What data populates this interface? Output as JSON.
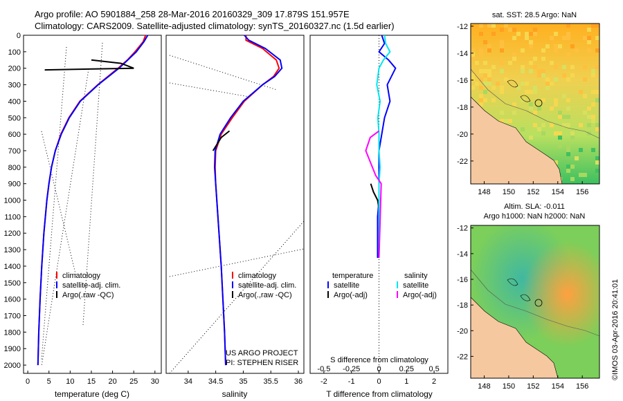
{
  "header": {
    "line1": "Argo profile: AO 5901884_258 28-Mar-2016 20160329_309 17.879S 151.957E",
    "line2": "Climatology: CARS2009. Satellite-adjusted climatology: synTS_20160327.nc (1.5d earlier)"
  },
  "colors": {
    "climatology": "#ff0000",
    "satellite": "#0000ff",
    "argo": "#000000",
    "sal_satellite": "#00e5ee",
    "sal_argo": "#ff00ff",
    "land": "#f5c8a0"
  },
  "depth_axis": {
    "min": 0,
    "max": 2050,
    "ticks": [
      "0",
      "100",
      "200",
      "300",
      "400",
      "500",
      "600",
      "700",
      "800",
      "900",
      "1000",
      "1100",
      "1200",
      "1300",
      "1400",
      "1500",
      "1600",
      "1700",
      "1800",
      "1900",
      "2000"
    ]
  },
  "chart_data": [
    {
      "type": "line",
      "name": "temperature",
      "xlabel": "temperature (deg C)",
      "xlim": [
        -1,
        31.5
      ],
      "xticks": [
        "0",
        "5",
        "10",
        "15",
        "20",
        "25",
        "30"
      ],
      "ylim": [
        0,
        2050
      ],
      "legend": [
        "climatology",
        "satellite-adj. clim.",
        "Argo(.raw -QC)"
      ],
      "series": [
        {
          "name": "climatology",
          "depth": [
            0,
            40,
            100,
            150,
            200,
            300,
            400,
            500,
            600,
            700,
            800,
            900,
            1000,
            1200,
            1400,
            1600,
            1800,
            2000
          ],
          "values": [
            27.8,
            27.2,
            25.3,
            23.5,
            21.3,
            16.5,
            12.3,
            9.7,
            7.8,
            6.5,
            5.6,
            5.0,
            4.5,
            3.8,
            3.3,
            2.9,
            2.6,
            2.4
          ]
        },
        {
          "name": "satellite-adj. clim.",
          "depth": [
            0,
            40,
            100,
            150,
            200,
            300,
            400,
            500,
            600,
            700,
            800,
            900,
            1000,
            1200,
            1400,
            1600,
            1800,
            2000
          ],
          "values": [
            28.3,
            27.4,
            25.6,
            23.6,
            21.5,
            16.6,
            12.4,
            9.8,
            7.9,
            6.5,
            5.6,
            5.0,
            4.5,
            3.8,
            3.3,
            2.9,
            2.6,
            2.4
          ]
        },
        {
          "name": "Argo",
          "depth": [
            150,
            170,
            200,
            210
          ],
          "values": [
            15,
            22,
            25,
            4
          ]
        }
      ]
    },
    {
      "type": "line",
      "name": "salinity",
      "xlabel": "salinity",
      "xlim": [
        33.6,
        36.1
      ],
      "xticks": [
        "34",
        "34.5",
        "35",
        "35.5",
        "36"
      ],
      "ylim": [
        0,
        2050
      ],
      "legend": [
        "climatology",
        "satellite-adj. clim.",
        "Argo(.,raw -QC)"
      ],
      "annotation": [
        "US ARGO PROJECT",
        "PI: STEPHEN RISER"
      ],
      "series": [
        {
          "name": "climatology",
          "depth": [
            0,
            30,
            80,
            150,
            200,
            250,
            300,
            400,
            500,
            600,
            700,
            800,
            900,
            1000,
            1200,
            1400,
            1600,
            1800,
            2000
          ],
          "values": [
            35.05,
            35.05,
            35.35,
            35.6,
            35.65,
            35.55,
            35.35,
            35.02,
            34.8,
            34.6,
            34.5,
            34.49,
            34.5,
            34.52,
            34.56,
            34.6,
            34.63,
            34.66,
            34.68
          ]
        },
        {
          "name": "satellite-adj. clim.",
          "depth": [
            0,
            30,
            80,
            150,
            200,
            250,
            300,
            400,
            500,
            600,
            700,
            800,
            900,
            1000,
            1200,
            1400,
            1600,
            1800,
            2000
          ],
          "values": [
            35.02,
            35.1,
            35.4,
            35.67,
            35.7,
            35.57,
            35.35,
            35.0,
            34.77,
            34.58,
            34.49,
            34.48,
            34.5,
            34.52,
            34.56,
            34.6,
            34.63,
            34.66,
            34.68
          ]
        },
        {
          "name": "Argo",
          "depth": [
            580,
            620,
            700
          ],
          "values": [
            34.75,
            34.6,
            34.45
          ]
        }
      ]
    },
    {
      "type": "line",
      "name": "difference",
      "xlabel": "T difference from climatology",
      "xlabel_top": "S difference from climatology",
      "xlim": [
        -2.5,
        2.5
      ],
      "xticks": [
        "-2",
        "-1",
        "0",
        "1",
        "2"
      ],
      "xticks_top": [
        "-0.5",
        "-0.25",
        "0",
        "0.25",
        "0.5"
      ],
      "ylim": [
        0,
        2050
      ],
      "legend_headers": [
        "temperature",
        "salinity"
      ],
      "legend": [
        "satellite",
        "Argo(-adj)",
        "satellite",
        "Argo(-adj)"
      ],
      "series": [
        {
          "name": "T satellite",
          "depth": [
            0,
            50,
            100,
            150,
            200,
            300,
            400,
            500,
            600,
            700,
            800,
            900,
            1000,
            1100,
            1200,
            1300,
            1350
          ],
          "values": [
            0.1,
            0.2,
            0.0,
            0.35,
            0.6,
            0.3,
            0.4,
            0.2,
            0.1,
            0.0,
            0.0,
            0.0,
            0.0,
            -0.05,
            -0.05,
            -0.05,
            -0.05
          ]
        },
        {
          "name": "T Argo",
          "depth": [
            900,
            950,
            1000,
            1050
          ],
          "values": [
            -0.3,
            -0.2,
            -0.05,
            0.0
          ]
        },
        {
          "name": "S satellite",
          "depth": [
            0,
            50,
            100,
            150,
            200,
            300,
            400,
            500,
            600,
            700,
            800,
            900,
            1000,
            1200,
            1350
          ],
          "values": [
            0.05,
            0.06,
            0.1,
            0.04,
            0.0,
            -0.02,
            0.01,
            -0.01,
            0.0,
            0.0,
            0.01,
            0.0,
            0.0,
            0.0,
            0.0
          ]
        },
        {
          "name": "S Argo",
          "depth": [
            580,
            620,
            700,
            850,
            900,
            1350
          ],
          "values": [
            0.0,
            -0.08,
            -0.12,
            -0.03,
            0.02,
            0.0
          ]
        }
      ]
    }
  ],
  "map_top": {
    "title": "sat. SST: 28.5  Argo: NaN",
    "xticks": [
      "148",
      "150",
      "152",
      "154",
      "156"
    ],
    "yticks": [
      "-12",
      "-14",
      "-16",
      "-18",
      "-20",
      "-22"
    ]
  },
  "map_bottom": {
    "title1": "Altim. SLA: -0.011",
    "title2": "Argo h1000: NaN h2000: NaN",
    "xticks": [
      "148",
      "150",
      "152",
      "154",
      "156"
    ],
    "yticks": [
      "-12",
      "-14",
      "-16",
      "-18",
      "-20",
      "-22"
    ]
  },
  "credit": "©IMOS 03-Apr-2016 20:41:01"
}
